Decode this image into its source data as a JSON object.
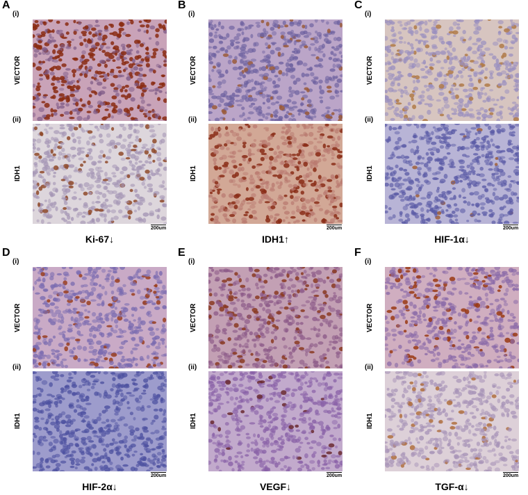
{
  "panels": [
    {
      "letter": "A",
      "marker": "Ki-67↓"
    },
    {
      "letter": "B",
      "marker": "IDH1↑"
    },
    {
      "letter": "C",
      "marker": "HIF-1α↓"
    },
    {
      "letter": "D",
      "marker": "HIF-2α↓"
    },
    {
      "letter": "E",
      "marker": "VEGF↓"
    },
    {
      "letter": "F",
      "marker": "TGF-α↓"
    }
  ],
  "sub_labels": {
    "top": "(i)",
    "bottom": "(ii)"
  },
  "row_labels": {
    "top": "VECTOR",
    "bottom": "IDH1"
  },
  "scale_bar": "200um",
  "tissue_colors": {
    "A_top": {
      "bg": "#c9a3b8",
      "cell": "#7e5a86",
      "dab": "#8a2b12",
      "dab_fraction": 0.55
    },
    "A_bottom": {
      "bg": "#ddd6dc",
      "cell": "#a596b5",
      "dab": "#8f4a2a",
      "dab_fraction": 0.15
    },
    "B_top": {
      "bg": "#bba5c8",
      "cell": "#6e62a0",
      "dab": "#9a5a3a",
      "dab_fraction": 0.1
    },
    "B_bottom": {
      "bg": "#d2a896",
      "cell": "#b97a70",
      "dab": "#8a2d18",
      "dab_fraction": 0.3
    },
    "C_top": {
      "bg": "#d7c5c0",
      "cell": "#9a8fbf",
      "dab": "#b07a48",
      "dab_fraction": 0.12
    },
    "C_bottom": {
      "bg": "#b8b4d6",
      "cell": "#5b5ba6",
      "dab": "#a0603a",
      "dab_fraction": 0.02
    },
    "D_top": {
      "bg": "#c9aac6",
      "cell": "#7a6bb0",
      "dab": "#9a4020",
      "dab_fraction": 0.12
    },
    "D_bottom": {
      "bg": "#9d9ccc",
      "cell": "#4d51a0",
      "dab": "#7a5060",
      "dab_fraction": 0.0
    },
    "E_top": {
      "bg": "#c3a0b4",
      "cell": "#8c5a88",
      "dab": "#8a3a22",
      "dab_fraction": 0.18
    },
    "E_bottom": {
      "bg": "#c2aacc",
      "cell": "#8a62a8",
      "dab": "#6a2a30",
      "dab_fraction": 0.04
    },
    "F_top": {
      "bg": "#d0aec0",
      "cell": "#8a6aa8",
      "dab": "#9a3a14",
      "dab_fraction": 0.16
    },
    "F_bottom": {
      "bg": "#ddd0d8",
      "cell": "#a894b8",
      "dab": "#b07040",
      "dab_fraction": 0.08
    }
  }
}
